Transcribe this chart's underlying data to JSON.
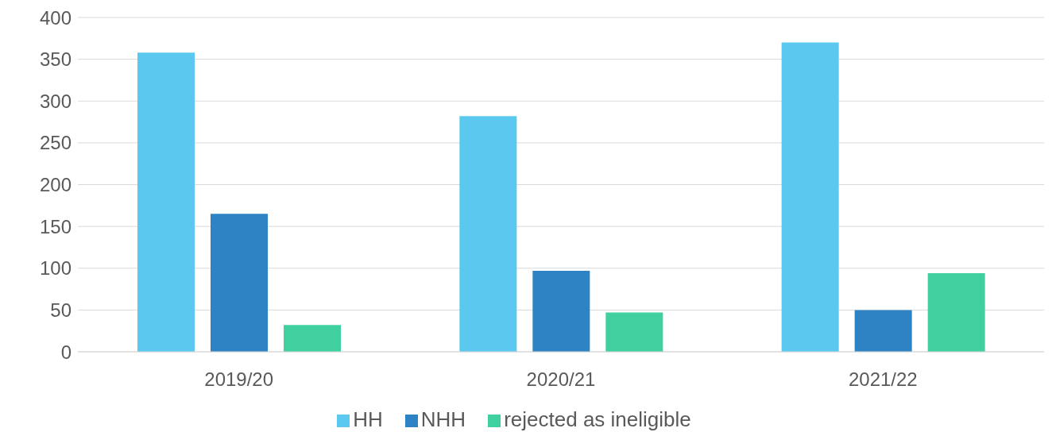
{
  "chart_data": {
    "type": "bar",
    "categories": [
      "2019/20",
      "2020/21",
      "2021/22"
    ],
    "series": [
      {
        "name": "HH",
        "color": "#5bc8ef",
        "values": [
          358,
          282,
          370
        ]
      },
      {
        "name": "NHH",
        "color": "#2e83c4",
        "values": [
          165,
          97,
          50
        ]
      },
      {
        "name": "rejected as ineligible",
        "color": "#40d0a0",
        "values": [
          32,
          47,
          94
        ]
      }
    ],
    "ylim": [
      0,
      400
    ],
    "yticks": [
      0,
      50,
      100,
      150,
      200,
      250,
      300,
      350,
      400
    ],
    "grid": "y",
    "legend": "bottom"
  }
}
